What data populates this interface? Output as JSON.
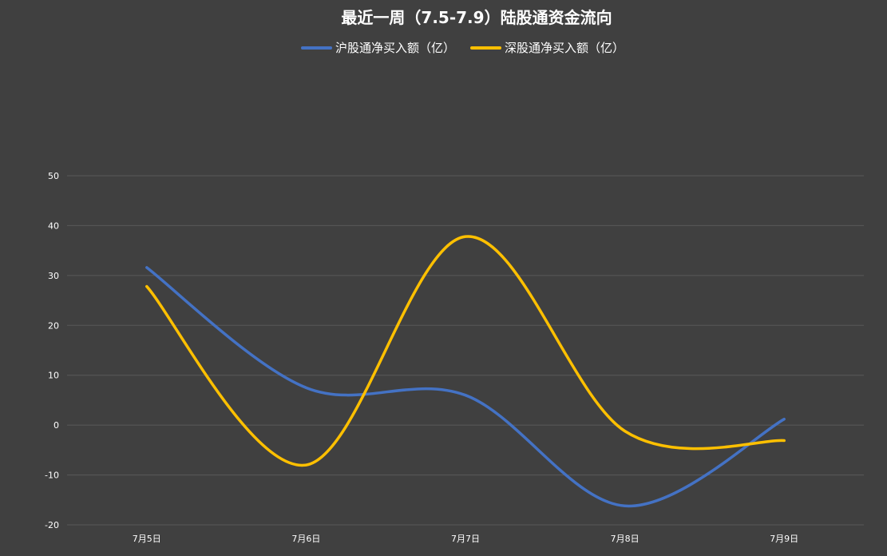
{
  "chart_data": {
    "type": "line",
    "title": "最近一周（7.5-7.9）陆股通资金流向",
    "categories": [
      "7月5日",
      "7月6日",
      "7月7日",
      "7月8日",
      "7月9日"
    ],
    "series": [
      {
        "name": "沪股通净买入额（亿）",
        "color": "#4472C4",
        "values": [
          31.6,
          7.5,
          6.0,
          -16.2,
          1.2
        ]
      },
      {
        "name": "深股通净买入额（亿）",
        "color": "#FFC000",
        "values": [
          27.8,
          -8.0,
          37.8,
          -1.2,
          -3.1
        ]
      }
    ],
    "y_ticks": [
      "50",
      "40",
      "30",
      "20",
      "10",
      "0",
      "-10",
      "-20"
    ],
    "ylim": [
      -20,
      50
    ],
    "grid": true,
    "smooth": true,
    "legend_position": "top"
  },
  "colors": {
    "background": "#404040",
    "grid": "#595959",
    "text": "#FFFFFF"
  }
}
